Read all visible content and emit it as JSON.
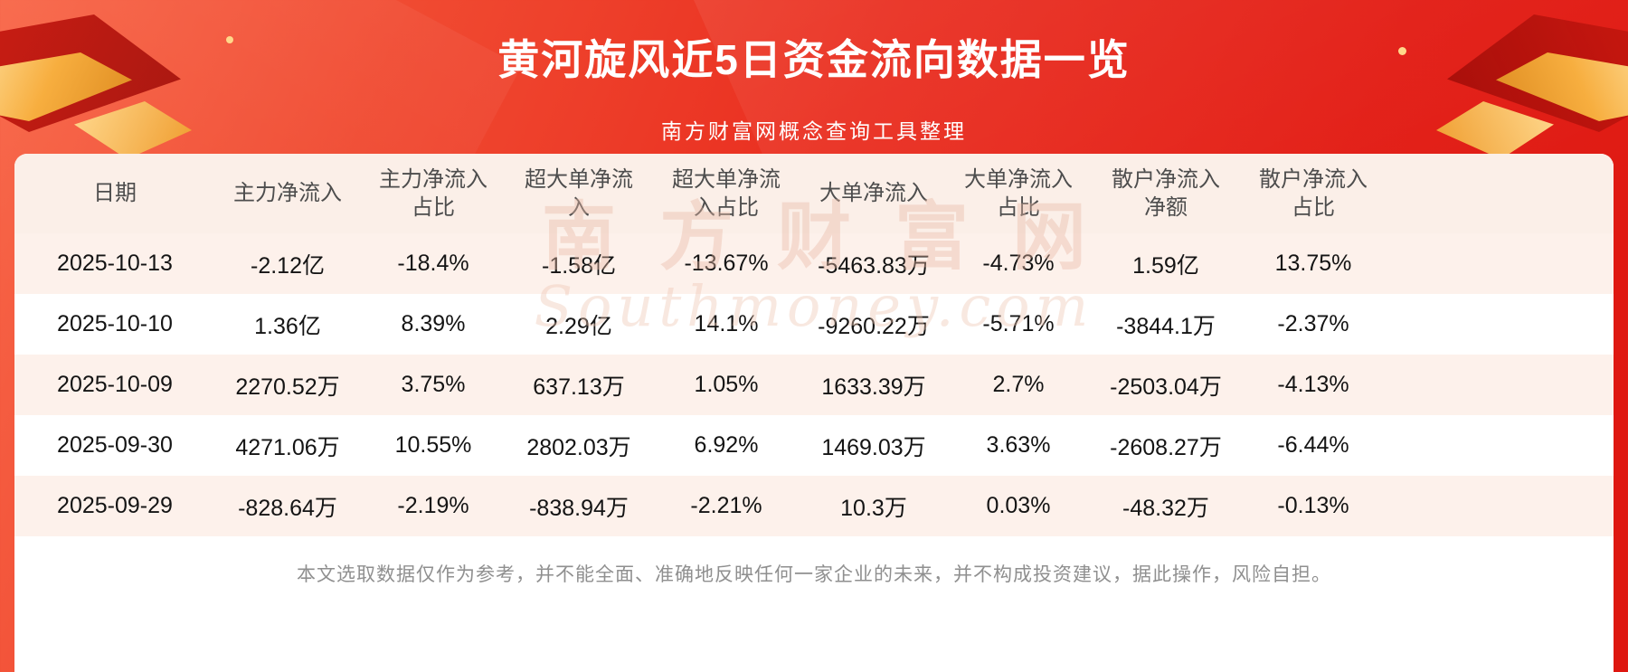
{
  "header": {
    "title": "黄河旋风近5日资金流向数据一览",
    "subtitle": "南方财富网概念查询工具整理"
  },
  "chart_data": {
    "type": "table",
    "title": "黄河旋风近5日资金流向数据一览",
    "columns": [
      "日期",
      "主力净流入",
      "主力净流入占比",
      "超大单净流入",
      "超大单净流入占比",
      "大单净流入",
      "大单净流入占比",
      "散户净流入净额",
      "散户净流入占比"
    ],
    "rows": [
      [
        "2025-10-13",
        "-2.12亿",
        "-18.4%",
        "-1.58亿",
        "-13.67%",
        "-5463.83万",
        "-4.73%",
        "1.59亿",
        "13.75%"
      ],
      [
        "2025-10-10",
        "1.36亿",
        "8.39%",
        "2.29亿",
        "14.1%",
        "-9260.22万",
        "-5.71%",
        "-3844.1万",
        "-2.37%"
      ],
      [
        "2025-10-09",
        "2270.52万",
        "3.75%",
        "637.13万",
        "1.05%",
        "1633.39万",
        "2.7%",
        "-2503.04万",
        "-4.13%"
      ],
      [
        "2025-09-30",
        "4271.06万",
        "10.55%",
        "2802.03万",
        "6.92%",
        "1469.03万",
        "3.63%",
        "-2608.27万",
        "-6.44%"
      ],
      [
        "2025-09-29",
        "-828.64万",
        "-2.19%",
        "-838.94万",
        "-2.21%",
        "10.3万",
        "0.03%",
        "-48.32万",
        "-0.13%"
      ]
    ]
  },
  "watermark": {
    "cn": "南方财富网",
    "en": "Southmoney.com"
  },
  "footer": {
    "disclaimer": "本文选取数据仅作为参考，并不能全面、准确地反映任何一家企业的未来，并不构成投资建议，据此操作，风险自担。"
  },
  "colors": {
    "background_red": "#e4211a",
    "gold_accent": "#f6a93b",
    "table_bg": "#ffffff",
    "row_alt": "#fdf1eb",
    "header_row_bg": "#fbefe8",
    "header_text": "#4d4d4d",
    "cell_text": "#141414",
    "disclaimer_text": "#8f8f8f",
    "watermark_tint": "#e8baa4"
  }
}
